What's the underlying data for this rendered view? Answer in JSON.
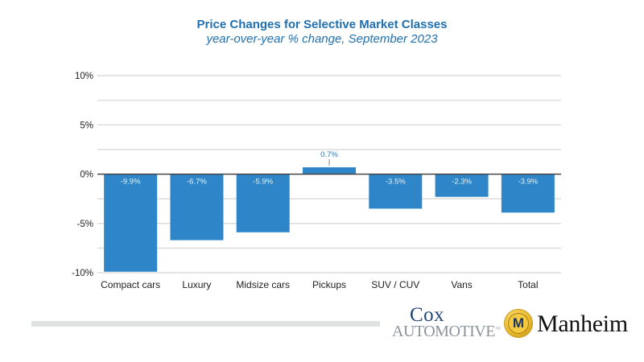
{
  "chart_data": {
    "type": "bar",
    "title": "Price Changes for Selective Market Classes",
    "subtitle": "year-over-year % change, September 2023",
    "xlabel": "",
    "ylabel": "",
    "categories": [
      "Compact cars",
      "Luxury",
      "Midsize cars",
      "Pickups",
      "SUV / CUV",
      "Vans",
      "Total"
    ],
    "values": [
      -9.9,
      -6.7,
      -5.9,
      0.7,
      -3.5,
      -2.3,
      -3.9
    ],
    "data_labels": [
      "-9.9%",
      "-6.7%",
      "-5.9%",
      "0.7%",
      "-3.5%",
      "-2.3%",
      "-3.9%"
    ],
    "ylim": [
      -10,
      10
    ],
    "yticks": [
      10,
      5,
      0,
      -5,
      -10
    ],
    "ytick_labels": [
      "10%",
      "5%",
      "0%",
      "-5%",
      "-10%"
    ],
    "minor_gridlines": [
      7.5,
      2.5,
      -2.5,
      -7.5
    ],
    "grid": true,
    "legend": "none",
    "bar_color": "#2e86c8"
  },
  "footer": {
    "cox_logo_top": "Cox",
    "cox_logo_bottom": "Automotive",
    "cox_trademark": "™",
    "manheim_badge_letter": "M",
    "manheim_logo": "Manheim"
  },
  "colors": {
    "title": "#1f6fae",
    "bar": "#2e86c8",
    "grid": "#dcdcdc",
    "axis": "#444444"
  }
}
